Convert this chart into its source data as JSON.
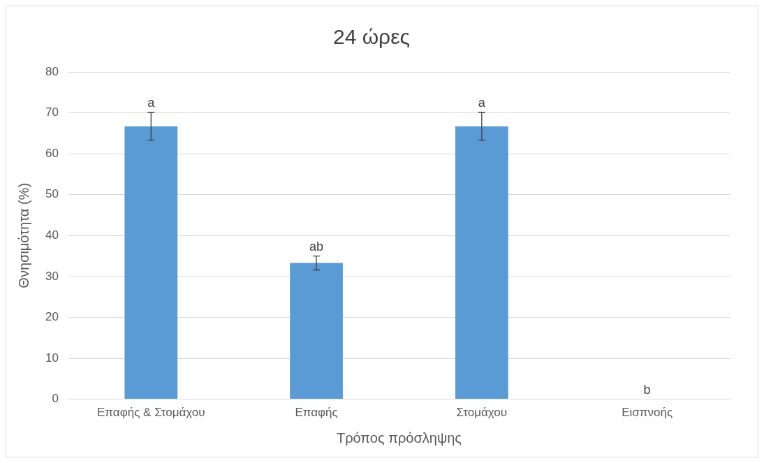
{
  "chart_data": {
    "type": "bar",
    "title": "24 ώρες",
    "xlabel": "Τρόπος πρόσληψης",
    "ylabel": "Θνησιμότητα (%)",
    "categories": [
      "Επαφής & Στομάχου",
      "Επαφής",
      "Στομάχου",
      "Εισπνοής"
    ],
    "values": [
      66.7,
      33.3,
      66.7,
      0
    ],
    "errors": [
      3.4,
      1.7,
      3.4,
      0
    ],
    "color": "#5b9bd5",
    "ylim": [
      0,
      80
    ],
    "yticks": [
      0,
      10,
      20,
      30,
      40,
      50,
      60,
      70,
      80
    ],
    "grid": "y",
    "legend": false,
    "annotations": [
      {
        "text": "a",
        "x": "Επαφής & Στομάχου",
        "y": 70.1
      },
      {
        "text": "ab",
        "x": "Επαφής",
        "y": 35
      },
      {
        "text": "a",
        "x": "Στομάχου",
        "y": 70.1
      },
      {
        "text": "b",
        "x": "Εισπνοής",
        "y": 0
      }
    ]
  }
}
